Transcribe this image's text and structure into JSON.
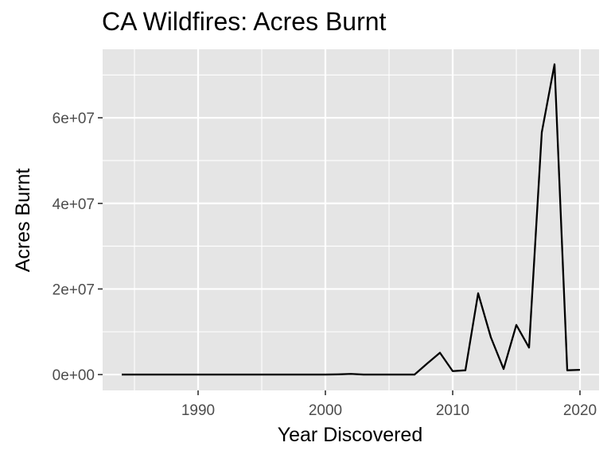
{
  "chart_data": {
    "type": "line",
    "title": "CA Wildfires: Acres Burnt",
    "xlabel": "Year Discovered",
    "ylabel": "Acres Burnt",
    "xlim": [
      1982.5,
      2021.5
    ],
    "ylim": [
      -3700000,
      76000000
    ],
    "x_ticks": [
      1990,
      2000,
      2010,
      2020
    ],
    "x_tick_labels": [
      "1990",
      "2000",
      "2010",
      "2020"
    ],
    "y_ticks": [
      0,
      20000000,
      40000000,
      60000000
    ],
    "y_tick_labels": [
      "0e+00",
      "2e+07",
      "4e+07",
      "6e+07"
    ],
    "grid": true,
    "legend": "none",
    "colors": {
      "panel_background": "#e5e5e5",
      "grid": "#ffffff",
      "line": "#000000",
      "tick_mark": "#333333"
    },
    "series": [
      {
        "x": [
          1984,
          1985,
          1986,
          1987,
          1988,
          1989,
          1990,
          1991,
          1992,
          1993,
          1994,
          1995,
          1996,
          1997,
          1998,
          1999,
          2000,
          2001,
          2002,
          2003,
          2004,
          2005,
          2006,
          2007,
          2008,
          2009,
          2010,
          2011,
          2012,
          2013,
          2014,
          2015,
          2016,
          2017,
          2018,
          2019,
          2020
        ],
        "y": [
          0,
          0,
          0,
          0,
          0,
          0,
          0,
          0,
          0,
          0,
          0,
          0,
          0,
          0,
          0,
          0,
          0,
          50000,
          150000,
          0,
          0,
          0,
          0,
          0,
          2600000,
          5100000,
          800000,
          1000000,
          19000000,
          8700000,
          1300000,
          11600000,
          6300000,
          56600000,
          72500000,
          1000000,
          1100000
        ]
      }
    ]
  }
}
